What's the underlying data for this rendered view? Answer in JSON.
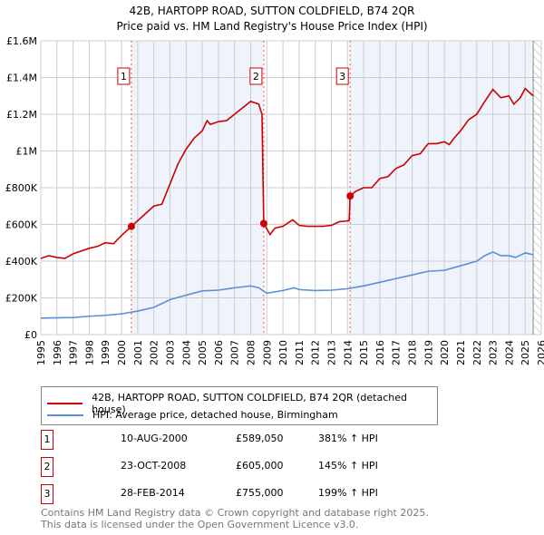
{
  "chart_data": {
    "type": "line",
    "title": "42B, HARTOPP ROAD, SUTTON COLDFIELD, B74 2QR",
    "subtitle": "Price paid vs. HM Land Registry's House Price Index (HPI)",
    "xlim": [
      1995,
      2026
    ],
    "ylim": [
      0,
      1600000
    ],
    "yticks": [
      {
        "v": 0,
        "label": "£0"
      },
      {
        "v": 200000,
        "label": "£200K"
      },
      {
        "v": 400000,
        "label": "£400K"
      },
      {
        "v": 600000,
        "label": "£600K"
      },
      {
        "v": 800000,
        "label": "£800K"
      },
      {
        "v": 1000000,
        "label": "£1M"
      },
      {
        "v": 1200000,
        "label": "£1.2M"
      },
      {
        "v": 1400000,
        "label": "£1.4M"
      },
      {
        "v": 1600000,
        "label": "£1.6M"
      }
    ],
    "xticks": [
      1995,
      1996,
      1997,
      1998,
      1999,
      2000,
      2001,
      2002,
      2003,
      2004,
      2005,
      2006,
      2007,
      2008,
      2009,
      2010,
      2011,
      2012,
      2013,
      2014,
      2015,
      2016,
      2017,
      2018,
      2019,
      2020,
      2021,
      2022,
      2023,
      2024,
      2025,
      2026
    ],
    "grid": true,
    "forecast_from": 2025.5,
    "series": [
      {
        "name": "42B, HARTOPP ROAD, SUTTON COLDFIELD, B74 2QR (detached house)",
        "color": "#cc0000",
        "x": [
          1995,
          1995.5,
          1996,
          1996.5,
          1997,
          1998,
          1998.5,
          1999,
          1999.5,
          2000,
          2000.61,
          2001,
          2001.5,
          2002,
          2002.5,
          2003,
          2003.5,
          2004,
          2004.5,
          2005,
          2005.3,
          2005.5,
          2006,
          2006.5,
          2007,
          2007.5,
          2008,
          2008.5,
          2008.7,
          2008.81,
          2009.2,
          2009.5,
          2010,
          2010.6,
          2011,
          2011.5,
          2012,
          2012.5,
          2013,
          2013.5,
          2014.1,
          2014.16,
          2014.5,
          2015,
          2015.5,
          2016,
          2016.5,
          2017,
          2017.5,
          2018,
          2018.5,
          2019,
          2019.5,
          2020,
          2020.3,
          2020.6,
          2021,
          2021.5,
          2022,
          2022.5,
          2023,
          2023.5,
          2024,
          2024.3,
          2024.7,
          2025,
          2025.5
        ],
        "y": [
          415000,
          430000,
          420000,
          415000,
          440000,
          470000,
          480000,
          500000,
          495000,
          540000,
          589050,
          620000,
          660000,
          700000,
          710000,
          820000,
          930000,
          1010000,
          1070000,
          1110000,
          1165000,
          1145000,
          1160000,
          1165000,
          1200000,
          1235000,
          1270000,
          1255000,
          1200000,
          605000,
          545000,
          580000,
          590000,
          625000,
          595000,
          590000,
          590000,
          590000,
          595000,
          615000,
          620000,
          755000,
          780000,
          800000,
          800000,
          850000,
          860000,
          905000,
          925000,
          975000,
          985000,
          1040000,
          1040000,
          1050000,
          1035000,
          1070000,
          1110000,
          1170000,
          1200000,
          1270000,
          1335000,
          1290000,
          1300000,
          1255000,
          1290000,
          1340000,
          1300000
        ]
      },
      {
        "name": "HPI: Average price, detached house, Birmingham",
        "color": "#5b8fd6",
        "x": [
          1995,
          1997,
          1998,
          1999,
          2000,
          2001,
          2002,
          2003,
          2004,
          2005,
          2006,
          2007,
          2008,
          2008.5,
          2009,
          2010,
          2010.7,
          2011,
          2012,
          2013,
          2014,
          2015,
          2016,
          2017,
          2018,
          2019,
          2020,
          2021,
          2022,
          2022.5,
          2023,
          2023.5,
          2024,
          2024.4,
          2025,
          2025.5
        ],
        "y": [
          90000,
          93000,
          100000,
          105000,
          113000,
          128000,
          148000,
          190000,
          215000,
          238000,
          242000,
          255000,
          265000,
          255000,
          225000,
          240000,
          255000,
          245000,
          240000,
          242000,
          250000,
          265000,
          285000,
          305000,
          325000,
          345000,
          350000,
          375000,
          400000,
          430000,
          450000,
          430000,
          430000,
          420000,
          445000,
          435000
        ]
      }
    ],
    "sales": [
      {
        "num": "1",
        "x": 2000.61,
        "price": 589050,
        "date": "10-AUG-2000",
        "price_label": "£589,050",
        "hpi": "381% ↑ HPI"
      },
      {
        "num": "2",
        "x": 2008.81,
        "price": 605000,
        "date": "23-OCT-2008",
        "price_label": "£605,000",
        "hpi": "145% ↑ HPI"
      },
      {
        "num": "3",
        "x": 2014.16,
        "price": 755000,
        "date": "28-FEB-2014",
        "price_label": "£755,000",
        "hpi": "199% ↑ HPI"
      }
    ],
    "footer": [
      "Contains HM Land Registry data © Crown copyright and database right 2025.",
      "This data is licensed under the Open Government Licence v3.0."
    ]
  }
}
